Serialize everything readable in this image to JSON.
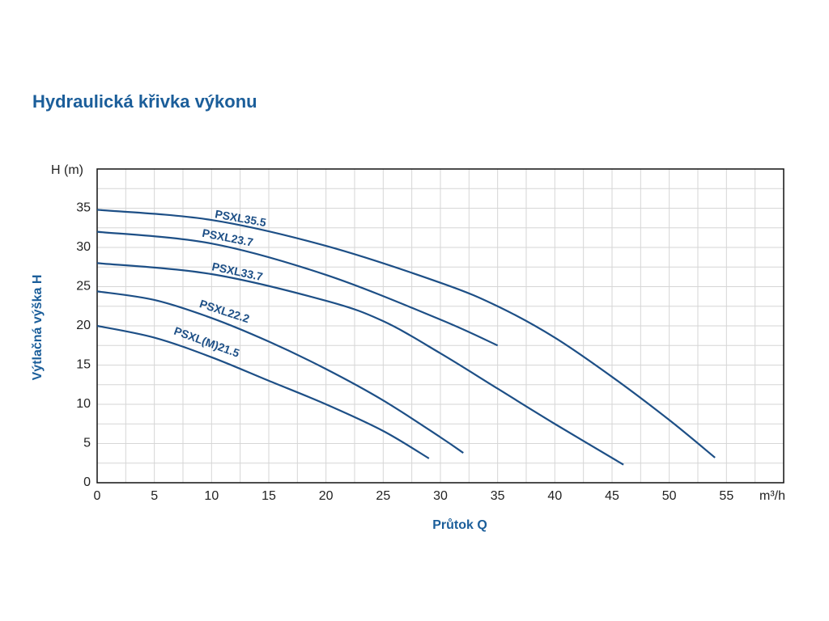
{
  "chart_data": {
    "type": "line",
    "title": "Hydraulická křivka výkonu",
    "y_label": "Výtlačná výška H",
    "x_label": "Průtok Q",
    "y_unit": "H (m)",
    "x_unit": "m³/h",
    "xlim": [
      0,
      60
    ],
    "ylim": [
      0,
      40
    ],
    "xticks": [
      0,
      5,
      10,
      15,
      20,
      25,
      30,
      35,
      40,
      45,
      50,
      55
    ],
    "yticks": [
      0,
      5,
      10,
      15,
      20,
      25,
      30,
      35
    ],
    "grid": true,
    "minor_grid": true,
    "series": [
      {
        "name": "PSXL35.5",
        "color": "#1d4f86",
        "x": [
          0,
          10,
          20,
          30,
          35,
          40,
          45,
          50,
          54
        ],
        "values": [
          34.8,
          33.5,
          30.2,
          25.5,
          22.5,
          18.5,
          13.5,
          8,
          3.2
        ]
      },
      {
        "name": "PSXL23.7",
        "color": "#1d4f86",
        "x": [
          0,
          10,
          20,
          30,
          35
        ],
        "values": [
          32,
          30.5,
          26.5,
          20.8,
          17.5
        ]
      },
      {
        "name": "PSXL33.7",
        "color": "#1d4f86",
        "x": [
          0,
          10,
          20,
          25,
          30,
          35,
          40,
          46
        ],
        "values": [
          28,
          26.6,
          23.2,
          20.6,
          16.5,
          12,
          7.5,
          2.3
        ]
      },
      {
        "name": "PSXL22.2",
        "color": "#1d4f86",
        "x": [
          0,
          5,
          10,
          15,
          20,
          25,
          30,
          32
        ],
        "values": [
          24.4,
          23.3,
          21,
          18,
          14.5,
          10.5,
          5.8,
          3.8
        ]
      },
      {
        "name": "PSXL(M)21.5",
        "color": "#1d4f86",
        "x": [
          0,
          5,
          10,
          15,
          20,
          25,
          29
        ],
        "values": [
          20,
          18.5,
          16,
          13,
          10,
          6.6,
          3.1
        ]
      }
    ]
  }
}
